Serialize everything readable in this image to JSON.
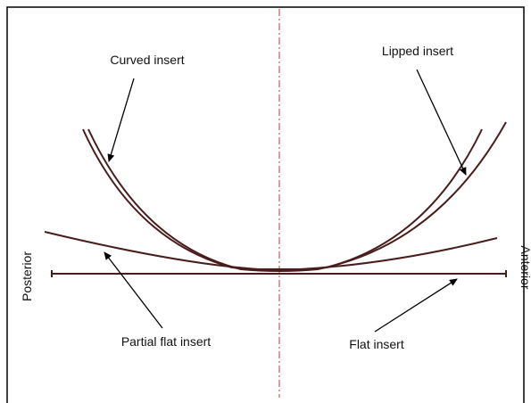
{
  "labels": {
    "curved_insert": "Curved insert",
    "lipped_insert": "Lipped insert",
    "posterior": "Posterior",
    "anterior": "Anterior",
    "partial_flat_insert": "Partial flat insert",
    "flat_insert": "Flat insert"
  }
}
